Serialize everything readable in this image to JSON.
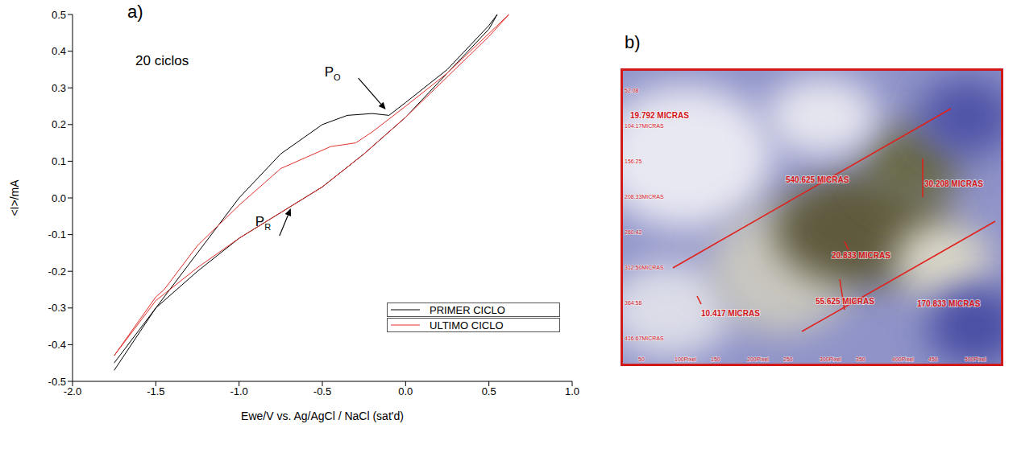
{
  "chart_data": {
    "type": "line",
    "title": "a)",
    "x_label": "Ewe/V vs. Ag/AgCl / NaCl (sat'd)",
    "y_label": "<I>/mA",
    "xlim": [
      -2,
      1
    ],
    "xticks": [
      {
        "value": -2,
        "label": "-2.0"
      },
      {
        "value": -1.5,
        "label": "-1.5"
      },
      {
        "value": -1,
        "label": "-1.0"
      },
      {
        "value": -0.5,
        "label": "-0.5"
      },
      {
        "value": 0,
        "label": "0.0"
      },
      {
        "value": 0.5,
        "label": "0.5"
      },
      {
        "value": 1,
        "label": "1.0"
      }
    ],
    "ylim": [
      -0.5,
      0.5
    ],
    "yticks": [
      {
        "value": -0.5,
        "label": "-0.5"
      },
      {
        "value": -0.4,
        "label": "-0.4"
      },
      {
        "value": -0.3,
        "label": "-0.3"
      },
      {
        "value": -0.2,
        "label": "-0.2"
      },
      {
        "value": -0.1,
        "label": "-0.1"
      },
      {
        "value": 0,
        "label": "0.0"
      },
      {
        "value": 0.1,
        "label": "0.1"
      },
      {
        "value": 0.2,
        "label": "0.2"
      },
      {
        "value": 0.3,
        "label": "0.3"
      },
      {
        "value": 0.4,
        "label": "0.4"
      },
      {
        "value": 0.5,
        "label": "0.5"
      }
    ],
    "legend": "lower right",
    "annotations": [
      {
        "text": "20 ciclos"
      },
      {
        "text": "P",
        "subscript": "O",
        "x": -0.1,
        "y": 0.23
      },
      {
        "text": "P",
        "subscript": "R",
        "x": -0.68,
        "y": -0.02
      }
    ],
    "series": [
      {
        "name": "PRIMER CICLO",
        "color": "#000000",
        "marker": "none",
        "line_style": "solid",
        "x": [
          -1.75,
          -1.5,
          -1.25,
          -1.0,
          -0.75,
          -0.5,
          -0.35,
          -0.2,
          -0.1,
          0.0,
          0.25,
          0.5,
          0.55,
          0.5,
          0.25,
          0.0,
          -0.25,
          -0.5,
          -0.75,
          -1.0,
          -1.25,
          -1.5,
          -1.75
        ],
        "values": [
          -0.47,
          -0.3,
          -0.15,
          0.0,
          0.12,
          0.2,
          0.225,
          0.23,
          0.225,
          0.26,
          0.35,
          0.47,
          0.5,
          0.46,
          0.34,
          0.22,
          0.12,
          0.03,
          -0.04,
          -0.11,
          -0.2,
          -0.3,
          -0.45
        ]
      },
      {
        "name": "ULTIMO CICLO",
        "color": "#e0302a",
        "marker": "none",
        "line_style": "solid",
        "x": [
          -1.75,
          -1.5,
          -1.45,
          -1.25,
          -1.0,
          -0.75,
          -0.6,
          -0.45,
          -0.3,
          -0.2,
          0.0,
          0.25,
          0.62,
          0.5,
          0.25,
          0.0,
          -0.25,
          -0.5,
          -0.75,
          -1.0,
          -1.25,
          -1.5,
          -1.75
        ],
        "values": [
          -0.43,
          -0.27,
          -0.25,
          -0.13,
          -0.02,
          0.08,
          0.11,
          0.14,
          0.15,
          0.18,
          0.25,
          0.34,
          0.5,
          0.44,
          0.33,
          0.22,
          0.12,
          0.03,
          -0.04,
          -0.11,
          -0.19,
          -0.28,
          -0.43
        ]
      }
    ]
  },
  "panel_b": {
    "title": "b)",
    "measurements": [
      "19.792 MICRAS",
      "540.625 MICRAS",
      "30.208 MICRAS",
      "20.833 MICRAS",
      "55.625 MICRAS",
      "170.833 MICRAS",
      "10.417 MICRAS"
    ],
    "scale_left": [
      "52.08",
      "104.17MICRAS",
      "156.25",
      "208.33MICRAS",
      "260.42",
      "312.50MICRAS",
      "364.58",
      "416.67MICRAS"
    ],
    "scale_bottom": [
      "50",
      "100Pixel",
      "150",
      "200Pixel",
      "250",
      "300Pixel",
      "350",
      "400Pixel",
      "450",
      "500Pixel"
    ]
  }
}
